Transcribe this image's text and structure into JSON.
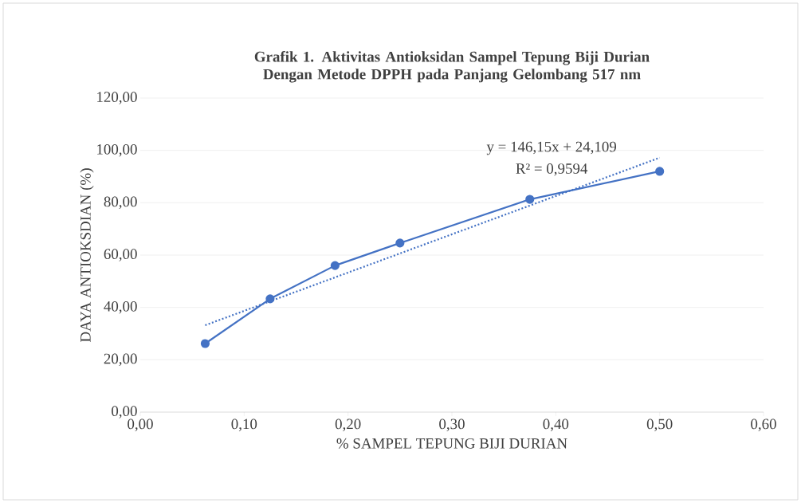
{
  "chart_data": {
    "type": "line",
    "title": "Grafik 1. Aktivitas Antioksidan Sampel Tepung Biji Durian  Dengan Metode DPPH pada Panjang Gelombang 517 nm",
    "xlabel": "% SAMPEL TEPUNG BIJI DURIAN",
    "ylabel": "DAYA ANTIOKSDIAN (%)",
    "x": [
      0.0625,
      0.125,
      0.1875,
      0.25,
      0.375,
      0.5
    ],
    "series": [
      {
        "color": "#4472c4",
        "marker": "circle",
        "line_style": "solid",
        "values": [
          26.2,
          43.3,
          56.0,
          64.6,
          81.3,
          92.0
        ]
      },
      {
        "type": "line",
        "color": "#4472c4",
        "marker": "none",
        "line_style": "dotted",
        "x": [
          0.0625,
          0.5
        ],
        "values": [
          33.2,
          97.2
        ]
      }
    ],
    "annotations": [
      "y = 146,15x + 24,109",
      "R² = 0,9594"
    ],
    "xlim": [
      0,
      0.6
    ],
    "ylim": [
      0,
      120
    ],
    "xticks": [
      {
        "value": 0,
        "label": "0,00"
      },
      {
        "value": 0.1,
        "label": "0,10"
      },
      {
        "value": 0.2,
        "label": "0,20"
      },
      {
        "value": 0.3,
        "label": "0,30"
      },
      {
        "value": 0.4,
        "label": "0,40"
      },
      {
        "value": 0.5,
        "label": "0,50"
      },
      {
        "value": 0.6,
        "label": "0,60"
      }
    ],
    "yticks": [
      {
        "value": 0,
        "label": "0,00"
      },
      {
        "value": 20,
        "label": "20,00"
      },
      {
        "value": 40,
        "label": "40,00"
      },
      {
        "value": 60,
        "label": "60,00"
      },
      {
        "value": 80,
        "label": "80,00"
      },
      {
        "value": 100,
        "label": "100,00"
      },
      {
        "value": 120,
        "label": "120,00"
      }
    ],
    "grid": "y"
  }
}
